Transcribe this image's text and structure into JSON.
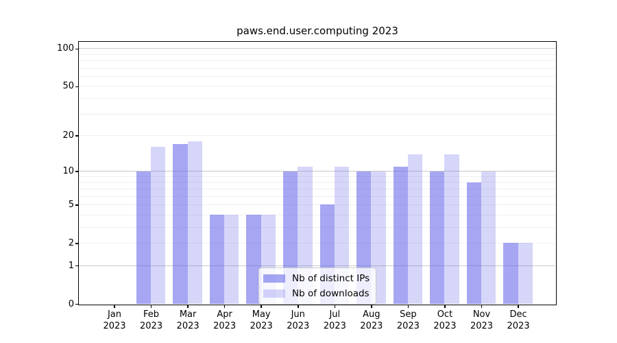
{
  "title": "paws.end.user.computing 2023",
  "chart_data": {
    "type": "bar",
    "title": "paws.end.user.computing 2023",
    "categories": [
      "Jan",
      "Feb",
      "Mar",
      "Apr",
      "May",
      "Jun",
      "Jul",
      "Aug",
      "Sep",
      "Oct",
      "Nov",
      "Dec"
    ],
    "year_label": "2023",
    "series": [
      {
        "name": "Nb of distinct IPs",
        "color": "#a5a5f4",
        "color_rgba": "rgba(92,92,231,0.55)",
        "values": [
          0,
          10,
          17,
          4,
          4,
          10,
          5,
          10,
          11,
          10,
          8,
          2
        ]
      },
      {
        "name": "Nb of downloads",
        "color": "#d6d6f9",
        "color_rgba": "rgba(92,92,231,0.25)",
        "values": [
          0,
          16,
          18,
          4,
          4,
          11,
          11,
          10,
          14,
          14,
          10,
          2
        ]
      }
    ],
    "xlabel": "",
    "ylabel": "",
    "y_scale": "log10(1+v)",
    "ylim": [
      0,
      113
    ],
    "y_ticks": [
      100,
      50,
      20,
      10,
      5,
      2,
      1,
      0
    ],
    "grid_major_values": [
      1,
      10,
      100
    ],
    "grid_minor_values": [
      2,
      3,
      4,
      5,
      6,
      7,
      8,
      9,
      20,
      30,
      40,
      50,
      60,
      70,
      80,
      90
    ],
    "grid": "horizontal",
    "legend_position": "lower center"
  },
  "legend": {
    "items": [
      "Nb of distinct IPs",
      "Nb of downloads"
    ]
  }
}
